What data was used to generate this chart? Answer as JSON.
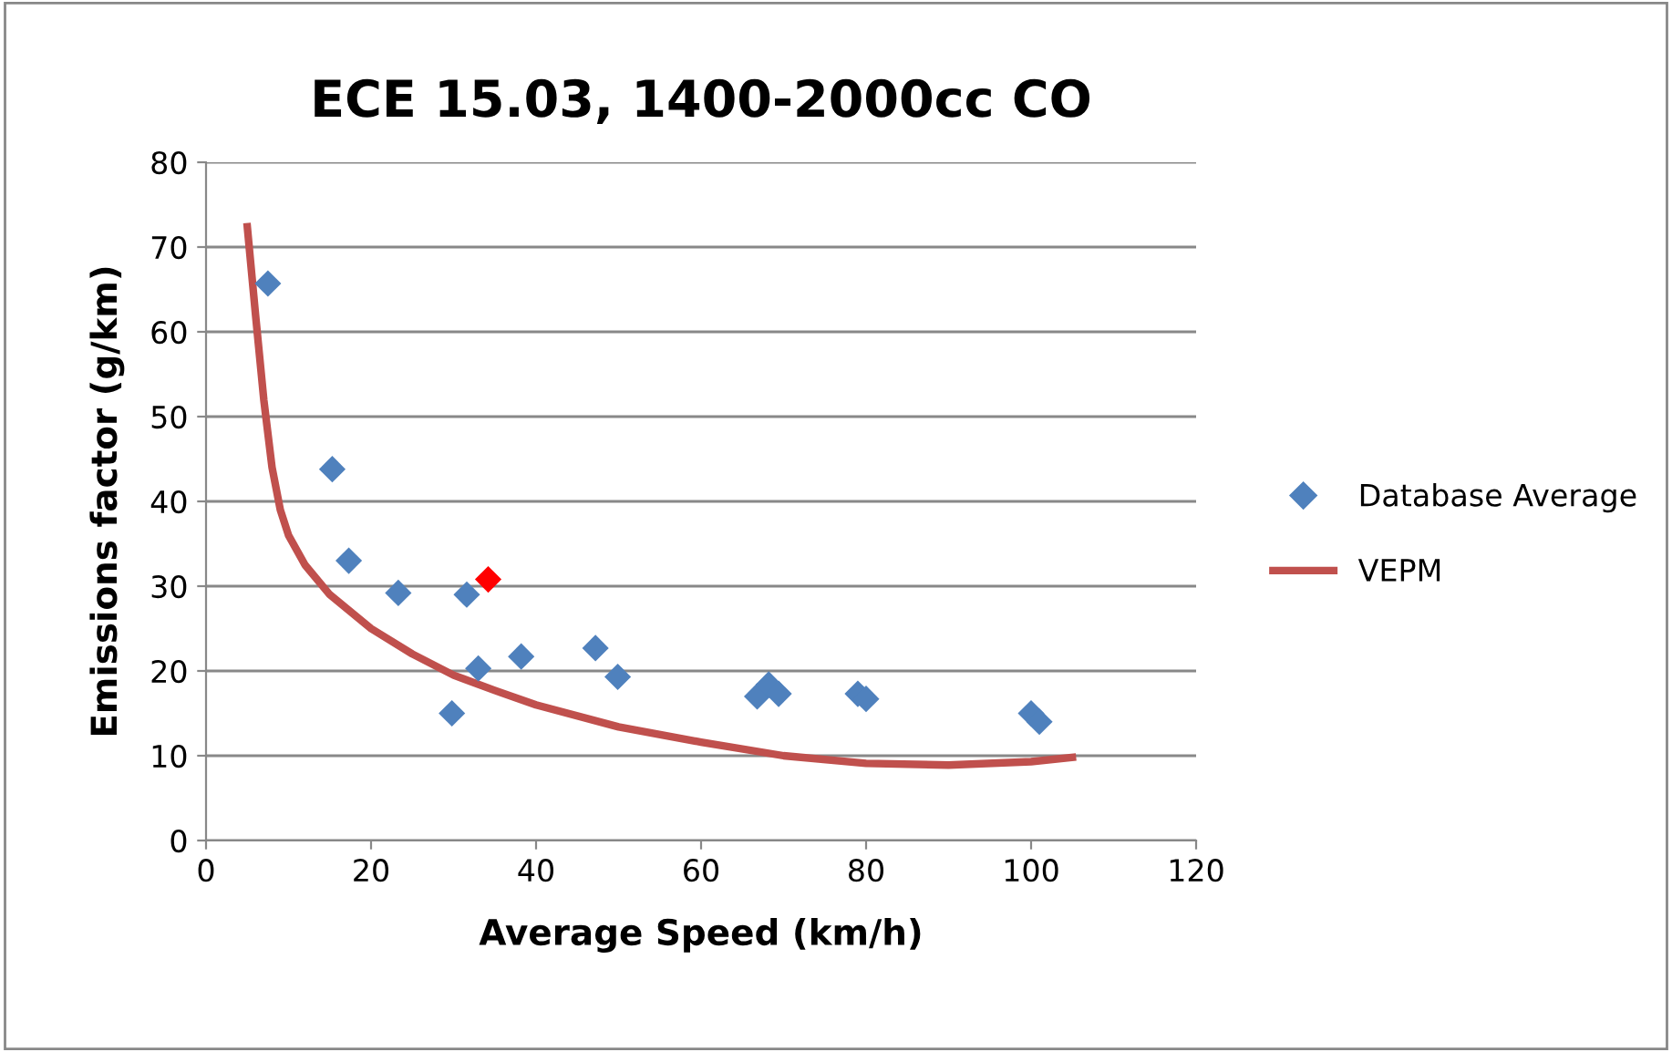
{
  "chart_data": {
    "type": "scatter",
    "title": "ECE 15.03, 1400-2000cc CO",
    "xlabel": "Average Speed (km/h)",
    "ylabel": "Emissions factor (g/km)",
    "xlim": [
      0,
      120
    ],
    "xticks": [
      0,
      20,
      40,
      60,
      80,
      100,
      120
    ],
    "ylim": [
      0,
      80
    ],
    "yticks": [
      0,
      10,
      20,
      30,
      40,
      50,
      60,
      70,
      80
    ],
    "grid": "y",
    "legend": "right",
    "series": [
      {
        "name": "Database Average",
        "marker": "diamond",
        "color": "#4f81bd",
        "x": [
          7.5,
          15.3,
          17.3,
          23.3,
          31.6,
          33,
          29.8,
          38.2,
          47.2,
          49.9,
          66.8,
          68.2,
          69.4,
          79,
          80,
          100,
          101,
          34.2
        ],
        "values": [
          65.7,
          43.8,
          33,
          29.2,
          29,
          20.3,
          15,
          21.7,
          22.7,
          19.3,
          17,
          18.4,
          17.3,
          17.3,
          16.7,
          15,
          14,
          30.8
        ],
        "colors": [
          "#4f81bd",
          "#4f81bd",
          "#4f81bd",
          "#4f81bd",
          "#4f81bd",
          "#4f81bd",
          "#4f81bd",
          "#4f81bd",
          "#4f81bd",
          "#4f81bd",
          "#4f81bd",
          "#4f81bd",
          "#4f81bd",
          "#4f81bd",
          "#4f81bd",
          "#4f81bd",
          "#4f81bd",
          "#ff0000"
        ]
      },
      {
        "name": "VEPM",
        "type": "line",
        "color": "#c0504d",
        "x": [
          5,
          6,
          7,
          8,
          9,
          10,
          12,
          15,
          20,
          25,
          30,
          35,
          40,
          50,
          60,
          70,
          80,
          90,
          100,
          105
        ],
        "values": [
          72.4,
          62,
          52,
          44,
          39,
          36,
          32.5,
          29,
          25,
          22,
          19.5,
          17.7,
          16,
          13.4,
          11.6,
          10,
          9.1,
          8.9,
          9.3,
          9.8
        ]
      }
    ]
  }
}
